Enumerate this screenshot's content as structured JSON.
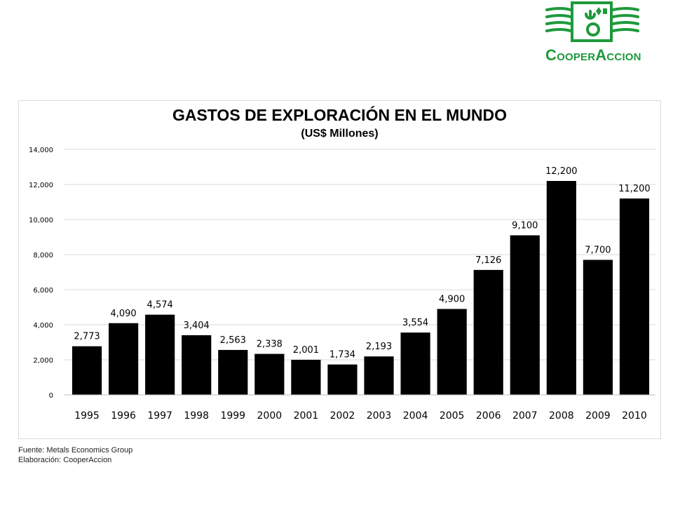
{
  "logo": {
    "name_big": "C",
    "name_small1": "OOPER",
    "name_mid": "A",
    "name_small2": "CCION",
    "color": "#1e9a3c"
  },
  "chart_data": {
    "type": "bar",
    "title": "GASTOS DE EXPLORACIÓN EN EL MUNDO",
    "subtitle": "(US$ Millones)",
    "categories": [
      "1995",
      "1996",
      "1997",
      "1998",
      "1999",
      "2000",
      "2001",
      "2002",
      "2003",
      "2004",
      "2005",
      "2006",
      "2007",
      "2008",
      "2009",
      "2010"
    ],
    "values": [
      2773,
      4090,
      4574,
      3404,
      2563,
      2338,
      2001,
      1734,
      2193,
      3554,
      4900,
      7126,
      9100,
      12200,
      7700,
      11200
    ],
    "value_labels": [
      "2,773",
      "4,090",
      "4,574",
      "3,404",
      "2,563",
      "2,338",
      "2,001",
      "1,734",
      "2,193",
      "3,554",
      "4,900",
      "7,126",
      "9,100",
      "12,200",
      "7,700",
      "11,200"
    ],
    "ylim": [
      0,
      14000
    ],
    "yticks": [
      "0",
      "2,000",
      "4,000",
      "6,000",
      "8,000",
      "10,000",
      "12,000",
      "14,000"
    ],
    "grid": true,
    "bar_color": "#000000"
  },
  "footer": {
    "source": "Fuente: Metals Economics Group",
    "credit": "Elaboración: CooperAccion"
  }
}
